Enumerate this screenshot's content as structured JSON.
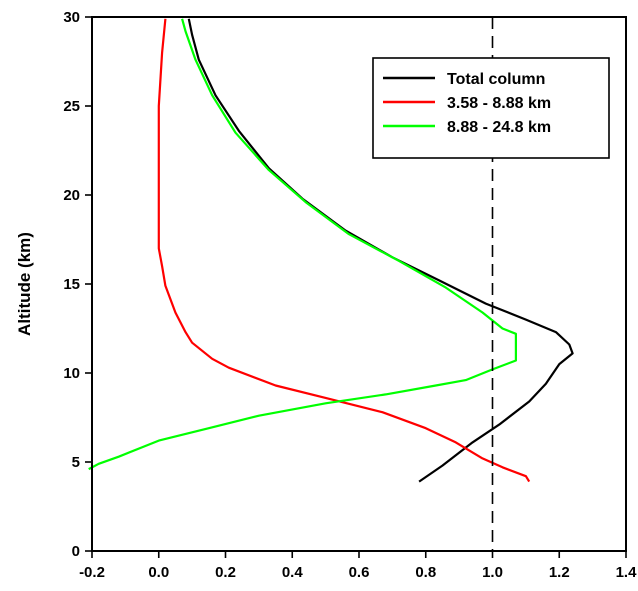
{
  "chart_data": {
    "type": "line",
    "title": "",
    "xlabel": "",
    "ylabel": "Altitude (km)",
    "xlim": [
      -0.2,
      1.4
    ],
    "ylim": [
      0,
      30
    ],
    "xticks": [
      "-0.2",
      "0.0",
      "0.2",
      "0.4",
      "0.6",
      "0.8",
      "1.0",
      "1.2",
      "1.4"
    ],
    "yticks": [
      "0",
      "5",
      "10",
      "15",
      "20",
      "25",
      "30"
    ],
    "reference_line": {
      "x": 1.0,
      "style": "dashed"
    },
    "legend_position": "top-right",
    "grid": false,
    "series": [
      {
        "name": "Total column",
        "color": "#000000",
        "points": [
          [
            0.78,
            3.9
          ],
          [
            0.85,
            4.8
          ],
          [
            0.94,
            6.1
          ],
          [
            1.02,
            7.1
          ],
          [
            1.11,
            8.4
          ],
          [
            1.16,
            9.4
          ],
          [
            1.2,
            10.5
          ],
          [
            1.24,
            11.1
          ],
          [
            1.23,
            11.6
          ],
          [
            1.19,
            12.3
          ],
          [
            1.1,
            13.0
          ],
          [
            0.98,
            13.9
          ],
          [
            0.84,
            15.2
          ],
          [
            0.7,
            16.5
          ],
          [
            0.56,
            18.0
          ],
          [
            0.43,
            19.8
          ],
          [
            0.33,
            21.5
          ],
          [
            0.24,
            23.6
          ],
          [
            0.17,
            25.6
          ],
          [
            0.12,
            27.6
          ],
          [
            0.1,
            29.0
          ],
          [
            0.09,
            29.9
          ]
        ]
      },
      {
        "name": "3.58 - 8.88 km",
        "color": "#ff0000",
        "points": [
          [
            1.11,
            3.9
          ],
          [
            1.1,
            4.2
          ],
          [
            1.03,
            4.7
          ],
          [
            0.97,
            5.2
          ],
          [
            0.89,
            6.1
          ],
          [
            0.8,
            6.9
          ],
          [
            0.67,
            7.8
          ],
          [
            0.5,
            8.6
          ],
          [
            0.35,
            9.3
          ],
          [
            0.21,
            10.3
          ],
          [
            0.16,
            10.8
          ],
          [
            0.1,
            11.7
          ],
          [
            0.08,
            12.3
          ],
          [
            0.05,
            13.4
          ],
          [
            0.02,
            14.9
          ],
          [
            0.01,
            16.0
          ],
          [
            0.0,
            17.0
          ],
          [
            0.0,
            20.0
          ],
          [
            0.0,
            25.0
          ],
          [
            0.01,
            28.0
          ],
          [
            0.02,
            29.9
          ]
        ]
      },
      {
        "name": "8.88 - 24.8 km",
        "color": "#00ff00",
        "points": [
          [
            -0.21,
            4.6
          ],
          [
            -0.18,
            4.9
          ],
          [
            -0.12,
            5.3
          ],
          [
            0.0,
            6.2
          ],
          [
            0.15,
            6.9
          ],
          [
            0.3,
            7.6
          ],
          [
            0.5,
            8.3
          ],
          [
            0.68,
            8.8
          ],
          [
            0.83,
            9.3
          ],
          [
            0.92,
            9.6
          ],
          [
            1.0,
            10.2
          ],
          [
            1.07,
            10.7
          ],
          [
            1.07,
            11.6
          ],
          [
            1.07,
            12.2
          ],
          [
            1.03,
            12.5
          ],
          [
            0.97,
            13.4
          ],
          [
            0.86,
            14.8
          ],
          [
            0.72,
            16.3
          ],
          [
            0.57,
            17.8
          ],
          [
            0.44,
            19.6
          ],
          [
            0.33,
            21.4
          ],
          [
            0.23,
            23.5
          ],
          [
            0.16,
            25.6
          ],
          [
            0.11,
            27.6
          ],
          [
            0.08,
            29.2
          ],
          [
            0.07,
            29.9
          ]
        ]
      }
    ]
  }
}
